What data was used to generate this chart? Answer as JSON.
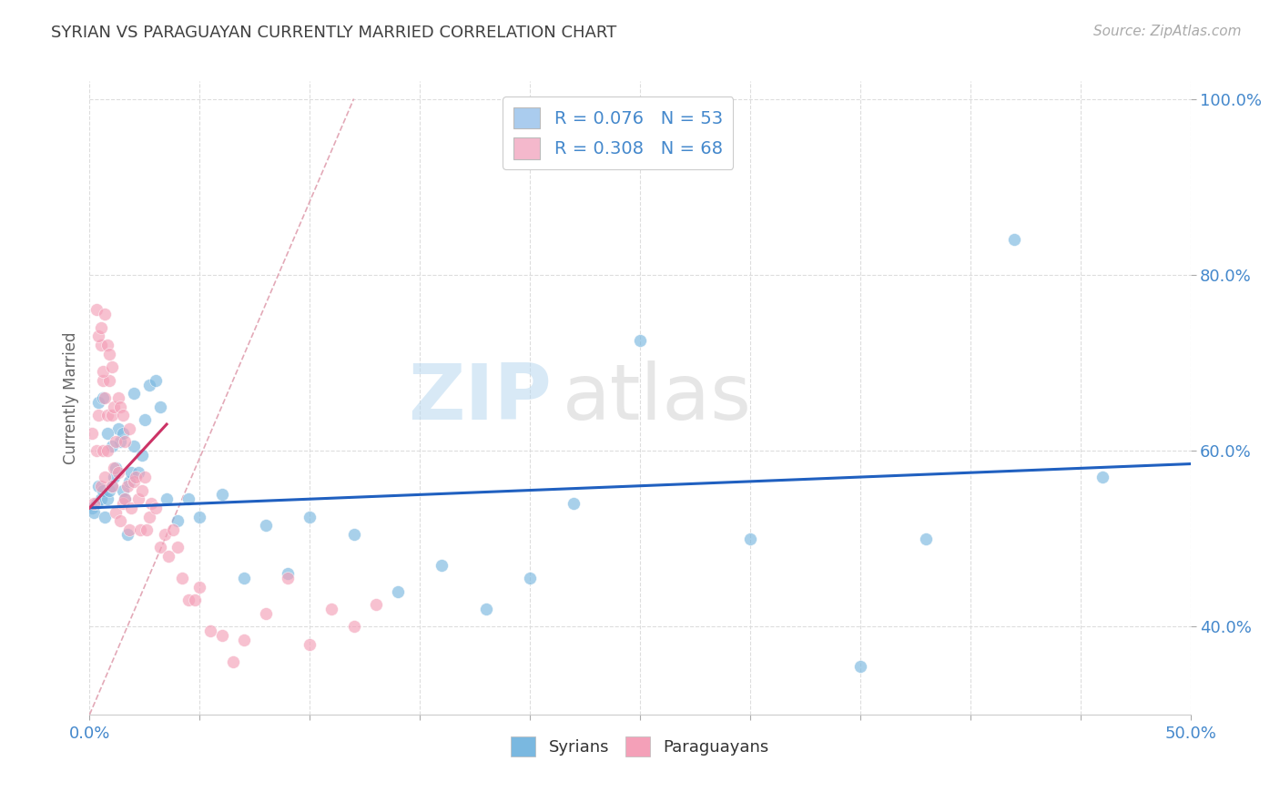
{
  "title": "SYRIAN VS PARAGUAYAN CURRENTLY MARRIED CORRELATION CHART",
  "source_text": "Source: ZipAtlas.com",
  "ylabel": "Currently Married",
  "xlim": [
    0.0,
    0.5
  ],
  "ylim": [
    0.3,
    1.02
  ],
  "xticks": [
    0.0,
    0.05,
    0.1,
    0.15,
    0.2,
    0.25,
    0.3,
    0.35,
    0.4,
    0.45,
    0.5
  ],
  "yticks": [
    0.4,
    0.6,
    0.8,
    1.0
  ],
  "ytick_labels": [
    "40.0%",
    "60.0%",
    "80.0%",
    "100.0%"
  ],
  "watermark_zip": "ZIP",
  "watermark_atlas": "atlas",
  "legend_items": [
    {
      "label": "R = 0.076   N = 53",
      "color": "#aaccee"
    },
    {
      "label": "R = 0.308   N = 68",
      "color": "#f4b8cc"
    }
  ],
  "syrian_color": "#7ab8e0",
  "paraguayan_color": "#f4a0b8",
  "syrian_trend_color": "#2060c0",
  "paraguayan_trend_color": "#cc3366",
  "ref_line_color": "#e0a0b0",
  "background_color": "#ffffff",
  "grid_color": "#dddddd",
  "title_color": "#404040",
  "axis_color": "#4488cc",
  "syrian_x": [
    0.001,
    0.002,
    0.003,
    0.004,
    0.005,
    0.006,
    0.007,
    0.008,
    0.009,
    0.01,
    0.011,
    0.012,
    0.013,
    0.014,
    0.015,
    0.016,
    0.017,
    0.018,
    0.019,
    0.02,
    0.022,
    0.024,
    0.025,
    0.027,
    0.03,
    0.032,
    0.035,
    0.04,
    0.045,
    0.05,
    0.06,
    0.07,
    0.08,
    0.09,
    0.1,
    0.12,
    0.14,
    0.16,
    0.18,
    0.2,
    0.22,
    0.25,
    0.3,
    0.35,
    0.38,
    0.42,
    0.46,
    0.004,
    0.006,
    0.008,
    0.01,
    0.015,
    0.02
  ],
  "syrian_y": [
    0.535,
    0.53,
    0.54,
    0.56,
    0.545,
    0.555,
    0.525,
    0.545,
    0.555,
    0.56,
    0.57,
    0.58,
    0.625,
    0.61,
    0.555,
    0.545,
    0.505,
    0.565,
    0.575,
    0.605,
    0.575,
    0.595,
    0.635,
    0.675,
    0.68,
    0.65,
    0.545,
    0.52,
    0.545,
    0.525,
    0.55,
    0.455,
    0.515,
    0.46,
    0.525,
    0.505,
    0.44,
    0.47,
    0.42,
    0.455,
    0.54,
    0.725,
    0.5,
    0.355,
    0.5,
    0.84,
    0.57,
    0.655,
    0.66,
    0.62,
    0.605,
    0.62,
    0.665
  ],
  "paraguayan_x": [
    0.001,
    0.002,
    0.003,
    0.004,
    0.005,
    0.005,
    0.006,
    0.006,
    0.007,
    0.007,
    0.008,
    0.008,
    0.009,
    0.01,
    0.01,
    0.011,
    0.011,
    0.012,
    0.012,
    0.013,
    0.013,
    0.014,
    0.014,
    0.015,
    0.015,
    0.016,
    0.016,
    0.017,
    0.018,
    0.018,
    0.019,
    0.02,
    0.021,
    0.022,
    0.023,
    0.024,
    0.025,
    0.026,
    0.027,
    0.028,
    0.03,
    0.032,
    0.034,
    0.036,
    0.038,
    0.04,
    0.042,
    0.045,
    0.048,
    0.05,
    0.055,
    0.06,
    0.065,
    0.07,
    0.08,
    0.09,
    0.1,
    0.11,
    0.12,
    0.13,
    0.003,
    0.004,
    0.005,
    0.006,
    0.007,
    0.008,
    0.009,
    0.01
  ],
  "paraguayan_y": [
    0.62,
    0.54,
    0.6,
    0.64,
    0.56,
    0.72,
    0.6,
    0.68,
    0.57,
    0.66,
    0.6,
    0.64,
    0.68,
    0.56,
    0.64,
    0.58,
    0.65,
    0.53,
    0.61,
    0.575,
    0.66,
    0.52,
    0.65,
    0.54,
    0.64,
    0.545,
    0.61,
    0.56,
    0.51,
    0.625,
    0.535,
    0.565,
    0.57,
    0.545,
    0.51,
    0.555,
    0.57,
    0.51,
    0.525,
    0.54,
    0.535,
    0.49,
    0.505,
    0.48,
    0.51,
    0.49,
    0.455,
    0.43,
    0.43,
    0.445,
    0.395,
    0.39,
    0.36,
    0.385,
    0.415,
    0.455,
    0.38,
    0.42,
    0.4,
    0.425,
    0.76,
    0.73,
    0.74,
    0.69,
    0.755,
    0.72,
    0.71,
    0.695
  ]
}
